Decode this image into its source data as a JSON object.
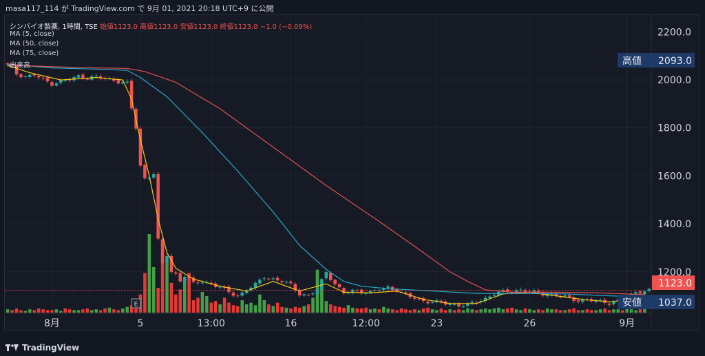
{
  "header": {
    "publisher_line": "masa117_114 が TradingView.com で 9月 01, 2021 20:18 UTC+9 に公開"
  },
  "legend": {
    "symbol": "シンバイオ製薬, 1時間, TSE",
    "ohlc": "始値1123.0 高値1123.0 安値1123.0 終値1123.0 −1.0 (−0.09%)",
    "ma5": "MA (5, close)",
    "ma50": "MA (50, close)",
    "ma75": "MA (75, close)",
    "volume": "出来高"
  },
  "footer": {
    "brand": "TradingView",
    "logo_icon": "tradingview-logo-icon"
  },
  "price_tags": {
    "high_label": "高値",
    "high_value": "2093.0",
    "last_value": "1123.0",
    "low_label": "安値",
    "low_value": "1037.0"
  },
  "earnings_marker": "E",
  "colors": {
    "up": "#26a69a",
    "down": "#ef5350",
    "ma5": "#f5c518",
    "ma50": "#26a9c9",
    "ma75": "#e05252",
    "bg": "#131722",
    "vol_up": "#43a047",
    "vol_down": "#e53935",
    "tag_bg": "#1e3a66",
    "last_bg": "#ef5350"
  },
  "chart_data": {
    "type": "candlestick",
    "ylim": [
      1030,
      2270
    ],
    "y_ticks": [
      "2200.0",
      "2000.0",
      "1800.0",
      "1600.0",
      "1400.0",
      "1200.0"
    ],
    "y_tick_values": [
      2200,
      2000,
      1800,
      1600,
      1400,
      1200
    ],
    "x_tick_labels": [
      "8月",
      "5",
      "13:00",
      "16",
      "12:00",
      "23",
      "26",
      "9月"
    ],
    "x_tick_index": [
      10,
      30,
      46,
      64,
      81,
      97,
      118,
      140
    ],
    "price_path": [
      [
        0,
        2060
      ],
      [
        1,
        2055
      ],
      [
        2,
        2025
      ],
      [
        4,
        2015
      ],
      [
        6,
        2020
      ],
      [
        8,
        2000
      ],
      [
        10,
        1985
      ],
      [
        12,
        1995
      ],
      [
        14,
        2000
      ],
      [
        16,
        2015
      ],
      [
        18,
        2010
      ],
      [
        20,
        2012
      ],
      [
        22,
        2005
      ],
      [
        24,
        2000
      ],
      [
        27,
        1985
      ],
      [
        28,
        1880
      ],
      [
        29,
        1800
      ],
      [
        30,
        1640
      ],
      [
        31,
        1590
      ],
      [
        33,
        1610
      ],
      [
        34,
        1330
      ],
      [
        35,
        1230
      ],
      [
        36,
        1270
      ],
      [
        37,
        1200
      ],
      [
        38,
        1190
      ],
      [
        39,
        1165
      ],
      [
        40,
        1185
      ],
      [
        42,
        1150
      ],
      [
        44,
        1160
      ],
      [
        46,
        1150
      ],
      [
        48,
        1135
      ],
      [
        50,
        1115
      ],
      [
        52,
        1100
      ],
      [
        54,
        1125
      ],
      [
        56,
        1145
      ],
      [
        58,
        1180
      ],
      [
        60,
        1170
      ],
      [
        62,
        1160
      ],
      [
        64,
        1145
      ],
      [
        66,
        1110
      ],
      [
        68,
        1100
      ],
      [
        70,
        1125
      ],
      [
        72,
        1200
      ],
      [
        74,
        1150
      ],
      [
        76,
        1110
      ],
      [
        78,
        1120
      ],
      [
        80,
        1120
      ],
      [
        82,
        1115
      ],
      [
        84,
        1125
      ],
      [
        86,
        1135
      ],
      [
        88,
        1125
      ],
      [
        90,
        1100
      ],
      [
        92,
        1090
      ],
      [
        94,
        1080
      ],
      [
        96,
        1075
      ],
      [
        98,
        1070
      ],
      [
        100,
        1065
      ],
      [
        102,
        1062
      ],
      [
        104,
        1060
      ],
      [
        106,
        1075
      ],
      [
        108,
        1090
      ],
      [
        110,
        1110
      ],
      [
        112,
        1115
      ],
      [
        114,
        1120
      ],
      [
        116,
        1125
      ],
      [
        118,
        1115
      ],
      [
        120,
        1110
      ],
      [
        122,
        1108
      ],
      [
        124,
        1100
      ],
      [
        126,
        1095
      ],
      [
        128,
        1085
      ],
      [
        130,
        1082
      ],
      [
        132,
        1080
      ],
      [
        134,
        1075
      ],
      [
        136,
        1072
      ],
      [
        138,
        1080
      ],
      [
        140,
        1090
      ],
      [
        142,
        1115
      ],
      [
        144,
        1123
      ]
    ],
    "ma_lines": [
      {
        "name": "MA (5, close)",
        "points": [
          [
            0,
            2060
          ],
          [
            5,
            2030
          ],
          [
            12,
            2000
          ],
          [
            20,
            2010
          ],
          [
            26,
            2000
          ],
          [
            28,
            1920
          ],
          [
            30,
            1750
          ],
          [
            32,
            1600
          ],
          [
            34,
            1420
          ],
          [
            36,
            1280
          ],
          [
            38,
            1215
          ],
          [
            42,
            1170
          ],
          [
            48,
            1140
          ],
          [
            54,
            1120
          ],
          [
            60,
            1160
          ],
          [
            66,
            1120
          ],
          [
            72,
            1150
          ],
          [
            76,
            1115
          ],
          [
            82,
            1112
          ],
          [
            88,
            1120
          ],
          [
            94,
            1085
          ],
          [
            100,
            1068
          ],
          [
            106,
            1068
          ],
          [
            112,
            1108
          ],
          [
            118,
            1115
          ],
          [
            124,
            1100
          ],
          [
            130,
            1085
          ],
          [
            136,
            1075
          ],
          [
            140,
            1082
          ],
          [
            144,
            1108
          ]
        ]
      },
      {
        "name": "MA (50, close)",
        "points": [
          [
            0,
            2065
          ],
          [
            10,
            2050
          ],
          [
            20,
            2045
          ],
          [
            27,
            2040
          ],
          [
            30,
            2010
          ],
          [
            36,
            1930
          ],
          [
            44,
            1780
          ],
          [
            52,
            1620
          ],
          [
            60,
            1450
          ],
          [
            66,
            1310
          ],
          [
            72,
            1210
          ],
          [
            76,
            1160
          ],
          [
            80,
            1140
          ],
          [
            86,
            1130
          ],
          [
            96,
            1120
          ],
          [
            106,
            1110
          ],
          [
            116,
            1110
          ],
          [
            126,
            1108
          ],
          [
            136,
            1100
          ],
          [
            144,
            1095
          ]
        ]
      },
      {
        "name": "MA (75, close)",
        "points": [
          [
            0,
            2062
          ],
          [
            10,
            2055
          ],
          [
            20,
            2050
          ],
          [
            27,
            2048
          ],
          [
            31,
            2035
          ],
          [
            38,
            1990
          ],
          [
            48,
            1880
          ],
          [
            60,
            1720
          ],
          [
            72,
            1560
          ],
          [
            84,
            1410
          ],
          [
            94,
            1280
          ],
          [
            100,
            1200
          ],
          [
            104,
            1160
          ],
          [
            108,
            1125
          ],
          [
            114,
            1115
          ],
          [
            124,
            1115
          ],
          [
            134,
            1112
          ],
          [
            144,
            1105
          ]
        ]
      }
    ],
    "volume_ratio": [
      0.04,
      0.03,
      0.05,
      0.03,
      0.02,
      0.04,
      0.03,
      0.05,
      0.04,
      0.03,
      0.03,
      0.04,
      0.02,
      0.05,
      0.04,
      0.03,
      0.03,
      0.04,
      0.05,
      0.03,
      0.04,
      0.03,
      0.05,
      0.06,
      0.04,
      0.03,
      0.05,
      0.07,
      0.09,
      0.15,
      0.22,
      0.48,
      0.95,
      0.55,
      0.3,
      0.88,
      0.62,
      0.36,
      0.22,
      0.28,
      0.4,
      0.48,
      0.15,
      0.18,
      0.25,
      0.2,
      0.12,
      0.14,
      0.1,
      0.18,
      0.12,
      0.09,
      0.08,
      0.15,
      0.1,
      0.12,
      0.09,
      0.22,
      0.15,
      0.1,
      0.08,
      0.12,
      0.07,
      0.06,
      0.05,
      0.07,
      0.06,
      0.08,
      0.1,
      0.18,
      0.52,
      0.38,
      0.14,
      0.1,
      0.08,
      0.07,
      0.06,
      0.09,
      0.06,
      0.05,
      0.05,
      0.06,
      0.04,
      0.05,
      0.04,
      0.07,
      0.05,
      0.04,
      0.03,
      0.05,
      0.04,
      0.03,
      0.04,
      0.03,
      0.05,
      0.06,
      0.04,
      0.03,
      0.05,
      0.03,
      0.04,
      0.03,
      0.04,
      0.03,
      0.05,
      0.04,
      0.03,
      0.04,
      0.05,
      0.04,
      0.05,
      0.06,
      0.04,
      0.05,
      0.06,
      0.04,
      0.03,
      0.05,
      0.04,
      0.03,
      0.04,
      0.03,
      0.05,
      0.04,
      0.04,
      0.03,
      0.03,
      0.04,
      0.05,
      0.03,
      0.03,
      0.04,
      0.03,
      0.03,
      0.04,
      0.05,
      0.03,
      0.04,
      0.04,
      0.03,
      0.05,
      0.04,
      0.03,
      0.04,
      0.05
    ]
  }
}
